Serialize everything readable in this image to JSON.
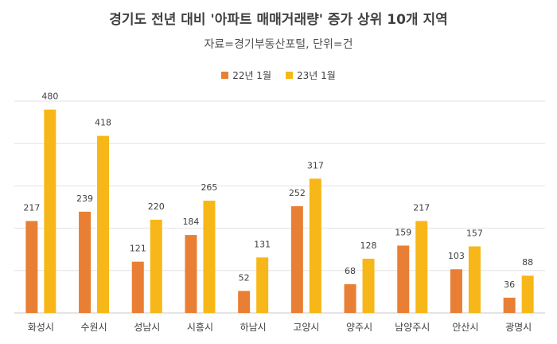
{
  "chart_data": {
    "type": "bar",
    "title": "경기도 전년 대비 '아파트 매매거래량' 증가 상위 10개 지역",
    "subtitle": "자료=경기부동산포털, 단위=건",
    "categories": [
      "화성시",
      "수원시",
      "성남시",
      "시흥시",
      "하남시",
      "고양시",
      "양주시",
      "남양주시",
      "안산시",
      "광명시"
    ],
    "series": [
      {
        "name": "22년 1월",
        "color": "#E87F35",
        "values": [
          217,
          239,
          121,
          184,
          52,
          252,
          68,
          159,
          103,
          36
        ]
      },
      {
        "name": "23년 1월",
        "color": "#F7B718",
        "values": [
          480,
          418,
          220,
          265,
          131,
          317,
          128,
          217,
          157,
          88
        ]
      }
    ],
    "ylim": [
      0,
      500
    ],
    "grid": true,
    "legend_position": "top"
  }
}
